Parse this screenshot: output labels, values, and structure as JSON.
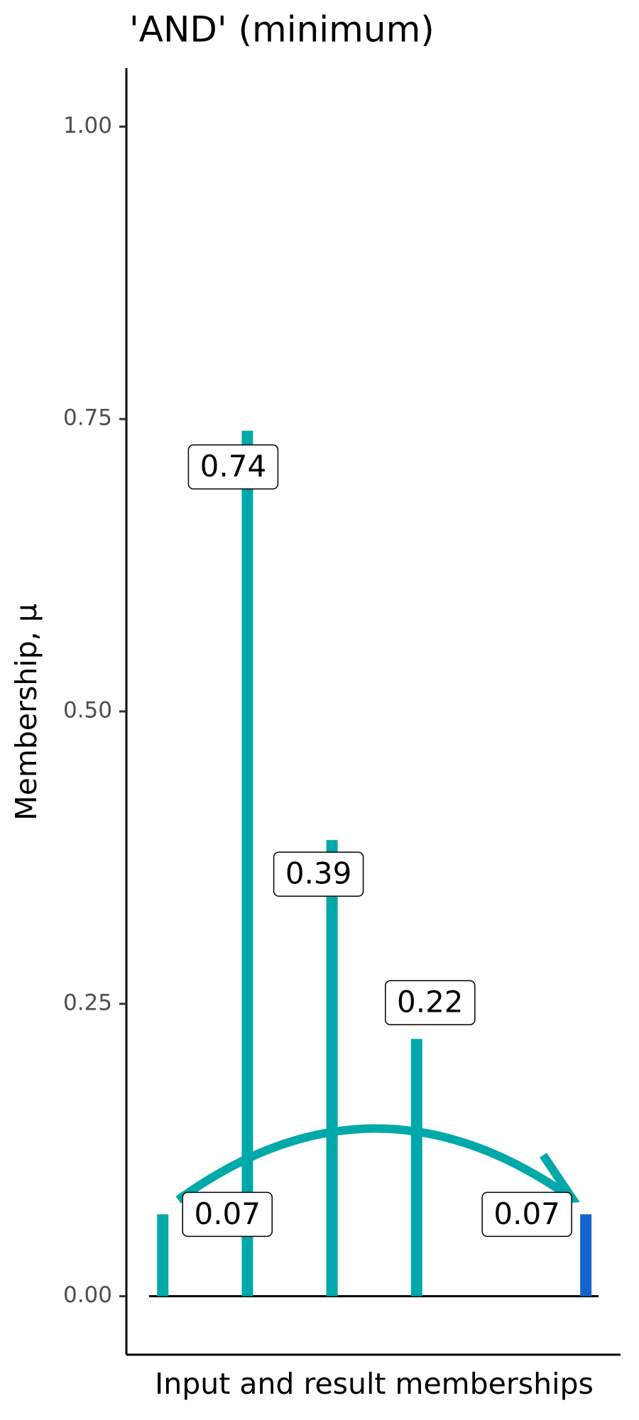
{
  "chart_data": {
    "type": "lollipop-bar",
    "title": "'AND' (minimum)",
    "x_label": "Input and result memberships",
    "y_label": "Membership, μ",
    "xlim": [
      0.57,
      6.41
    ],
    "ylim": [
      -0.05,
      1.05
    ],
    "yticks": [
      {
        "value": 0,
        "label": "0.00"
      },
      {
        "value": 0.25,
        "label": "0.25"
      },
      {
        "value": 0.5,
        "label": "0.50"
      },
      {
        "value": 0.75,
        "label": "0.75"
      },
      {
        "value": 1,
        "label": "1.00"
      }
    ],
    "series": [
      {
        "color": "#00A9A9",
        "x": [
          1,
          2,
          3,
          4
        ],
        "values": [
          0.07,
          0.74,
          0.39,
          0.22
        ]
      },
      {
        "color": "#1464CC",
        "x": [
          6
        ],
        "values": [
          0.07
        ]
      }
    ]
  }
}
